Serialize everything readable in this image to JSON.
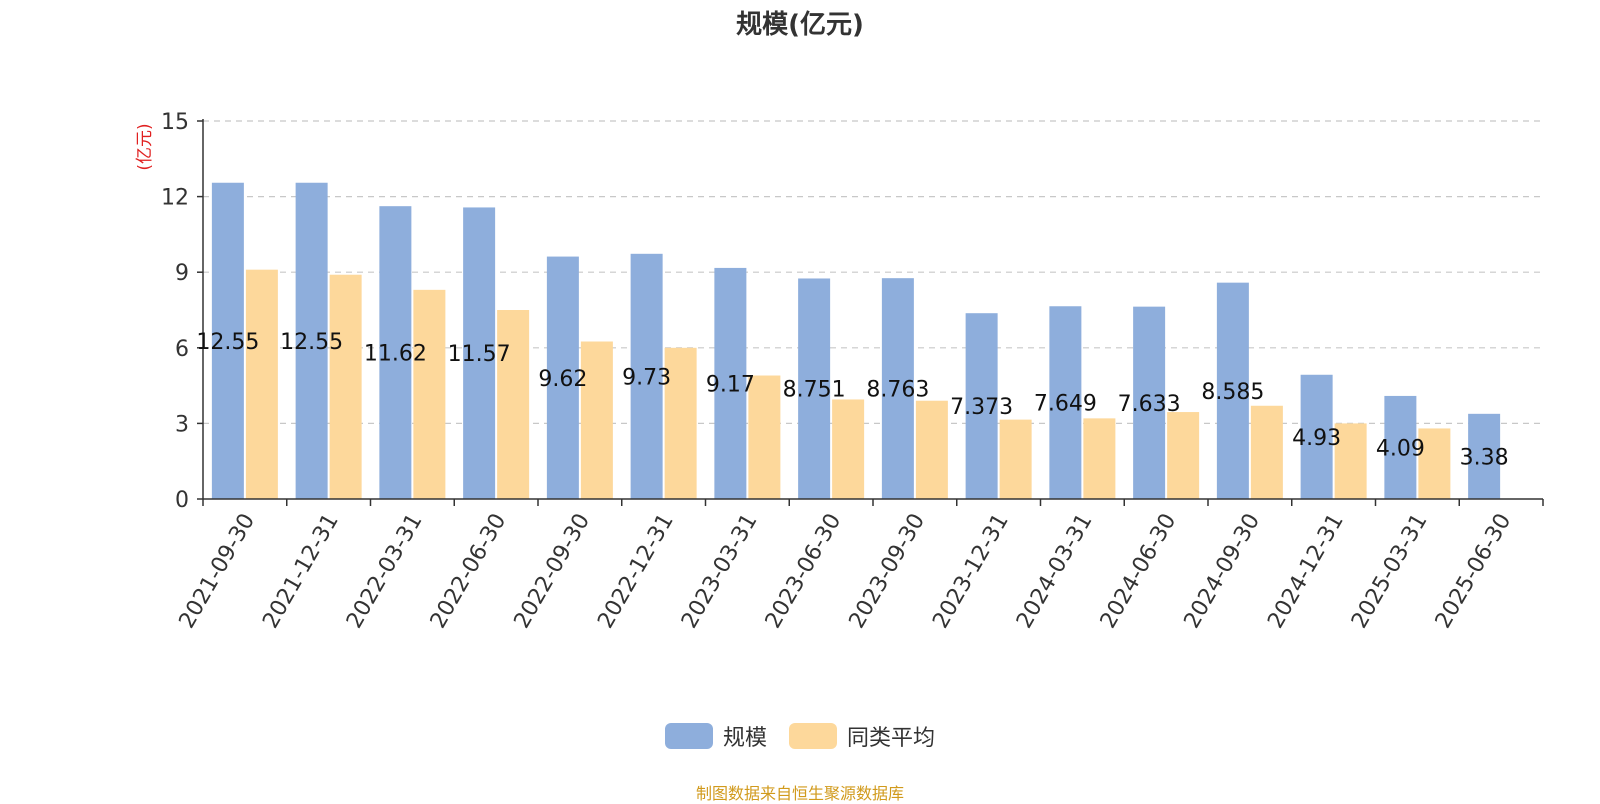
{
  "title": "规模(亿元)",
  "source_note": "制图数据来自恒生聚源数据库",
  "chart_data": {
    "type": "bar",
    "title": "规模(亿元)",
    "ylabel": "(亿元)",
    "xlabel": "",
    "ylim": [
      0,
      15
    ],
    "yticks": [
      0,
      3,
      6,
      9,
      12,
      15
    ],
    "grid": true,
    "legend_position": "bottom-center",
    "categories": [
      "2021-09-30",
      "2021-12-31",
      "2022-03-31",
      "2022-06-30",
      "2022-09-30",
      "2022-12-31",
      "2023-03-31",
      "2023-06-30",
      "2023-09-30",
      "2023-12-31",
      "2024-03-31",
      "2024-06-30",
      "2024-09-30",
      "2024-12-31",
      "2025-03-31",
      "2025-06-30"
    ],
    "series": [
      {
        "name": "规模",
        "color": "#8eaedc",
        "values": [
          12.55,
          12.55,
          11.62,
          11.57,
          9.62,
          9.73,
          9.17,
          8.751,
          8.763,
          7.373,
          7.649,
          7.633,
          8.585,
          4.93,
          4.09,
          3.38
        ],
        "labels": [
          "12.55",
          "12.55",
          "11.62",
          "11.57",
          "9.62",
          "9.73",
          "9.17",
          "8.751",
          "8.763",
          "7.373",
          "7.649",
          "7.633",
          "8.585",
          "4.93",
          "4.09",
          "3.38"
        ]
      },
      {
        "name": "同类平均",
        "color": "#fdd89b",
        "values": [
          9.1,
          8.9,
          8.3,
          7.5,
          6.25,
          6.0,
          4.9,
          3.95,
          3.9,
          3.15,
          3.2,
          3.45,
          3.7,
          3.0,
          2.8,
          null
        ]
      }
    ]
  }
}
